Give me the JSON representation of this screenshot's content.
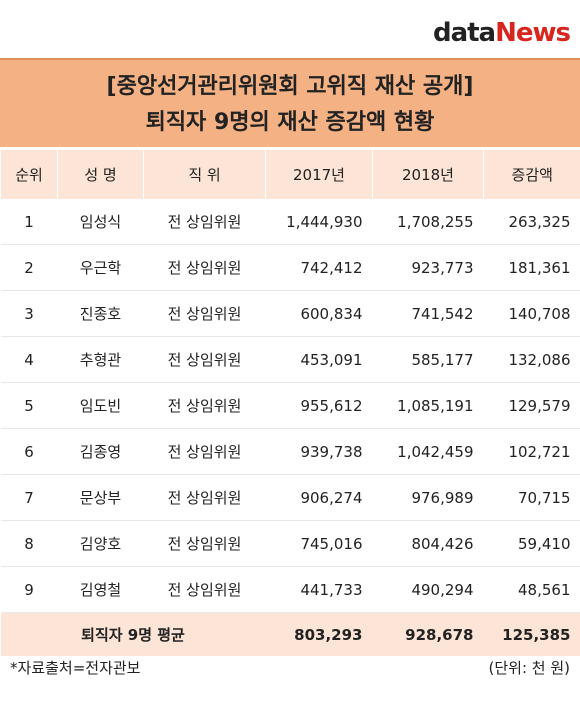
{
  "header": {
    "logo": {
      "prefix": "data",
      "suffix": "News"
    },
    "title": "[중앙선거관리위원회 고위직 재산 공개]",
    "subtitle": "퇴직자 9명의 재산 증감액 현황"
  },
  "table": {
    "columns": [
      "순위",
      "성 명",
      "직 위",
      "2017년",
      "2018년",
      "증감액"
    ],
    "rows": [
      [
        "1",
        "임성식",
        "전 상임위원",
        "1,444,930",
        "1,708,255",
        "263,325"
      ],
      [
        "2",
        "우근학",
        "전 상임위원",
        "742,412",
        "923,773",
        "181,361"
      ],
      [
        "3",
        "진종호",
        "전 상임위원",
        "600,834",
        "741,542",
        "140,708"
      ],
      [
        "4",
        "추형관",
        "전 상임위원",
        "453,091",
        "585,177",
        "132,086"
      ],
      [
        "5",
        "임도빈",
        "전 상임위원",
        "955,612",
        "1,085,191",
        "129,579"
      ],
      [
        "6",
        "김종영",
        "전 상임위원",
        "939,738",
        "1,042,459",
        "102,721"
      ],
      [
        "7",
        "문상부",
        "전 상임위원",
        "906,274",
        "976,989",
        "70,715"
      ],
      [
        "8",
        "김양호",
        "전 상임위원",
        "745,016",
        "804,426",
        "59,410"
      ],
      [
        "9",
        "김영철",
        "전 상임위원",
        "441,733",
        "490,294",
        "48,561"
      ]
    ],
    "footer": {
      "label": "퇴직자 9명 평균",
      "values": [
        "803,293",
        "928,678",
        "125,385"
      ]
    }
  },
  "notes": {
    "source": "*자료출처=전자관보",
    "unit": "(단위: 천 원)"
  }
}
